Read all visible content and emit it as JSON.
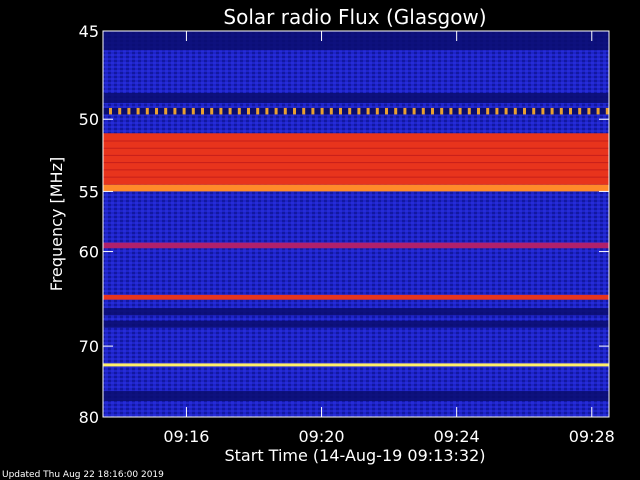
{
  "chart_data": {
    "type": "heatmap",
    "title": "Solar radio Flux (Glasgow)",
    "xlabel": "Start Time (14-Aug-19 09:13:32)",
    "ylabel": "Frequency [MHz]",
    "xtick_labels": [
      "09:16",
      "09:20",
      "09:24",
      "09:28"
    ],
    "xticks_minutes": [
      2.47,
      6.47,
      10.47,
      14.47
    ],
    "xlim_minutes": [
      0,
      14.98
    ],
    "ytick_labels": [
      "45",
      "50",
      "55",
      "60",
      "70",
      "80"
    ],
    "ytick_values": [
      45,
      50,
      55,
      60,
      70,
      80
    ],
    "ylim": [
      45,
      80
    ],
    "y_scale": "reciprocal",
    "footer": "Updated Thu Aug 22 18:16:00 2019",
    "colors": {
      "background": "#000000",
      "plot_base": "#1a1fb5",
      "low": "#0b0d6e",
      "high": "#e8341c",
      "peak": "#ffee66"
    },
    "bands": [
      {
        "f_start": 45.0,
        "f_end": 46.0,
        "level": "dark"
      },
      {
        "f_start": 48.4,
        "f_end": 49.0,
        "level": "dark"
      },
      {
        "f_start": 49.3,
        "f_end": 49.7,
        "level": "dotted"
      },
      {
        "f_start": 50.9,
        "f_end": 54.5,
        "level": "high"
      },
      {
        "f_start": 54.5,
        "f_end": 55.0,
        "level": "high-edge"
      },
      {
        "f_start": 59.2,
        "f_end": 59.7,
        "level": "medium"
      },
      {
        "f_start": 64.2,
        "f_end": 64.7,
        "level": "high"
      },
      {
        "f_start": 65.6,
        "f_end": 66.4,
        "level": "dark"
      },
      {
        "f_start": 67.0,
        "f_end": 67.8,
        "level": "dark"
      },
      {
        "f_start": 72.2,
        "f_end": 72.6,
        "level": "peak"
      },
      {
        "f_start": 76.0,
        "f_end": 77.5,
        "level": "dark"
      }
    ]
  }
}
